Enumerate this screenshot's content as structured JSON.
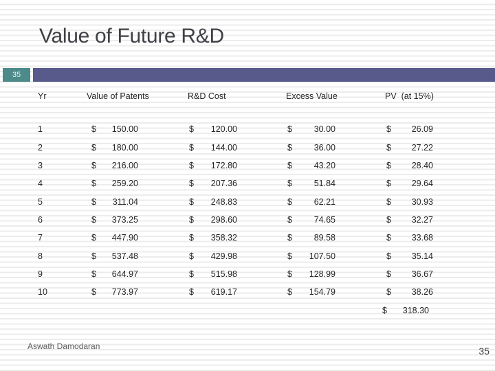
{
  "title": "Value of Future R&D",
  "badge_number": "35",
  "colors": {
    "accent_teal": "#4d8a8a",
    "accent_purple": "#575a8a",
    "stripe_gray": "#ececec",
    "title_text": "#3f4146",
    "body_text": "#262626",
    "footer_text": "#595959"
  },
  "table": {
    "currency_symbol": "$",
    "columns": [
      "Yr",
      "Value of Patents",
      "R&D Cost",
      "Excess Value",
      "PV  (at 15%)"
    ],
    "rows": [
      {
        "yr": "1",
        "value_of_patents": "150.00",
        "rd_cost": "120.00",
        "excess_value": "30.00",
        "pv": "26.09"
      },
      {
        "yr": "2",
        "value_of_patents": "180.00",
        "rd_cost": "144.00",
        "excess_value": "36.00",
        "pv": "27.22"
      },
      {
        "yr": "3",
        "value_of_patents": "216.00",
        "rd_cost": "172.80",
        "excess_value": "43.20",
        "pv": "28.40"
      },
      {
        "yr": "4",
        "value_of_patents": "259.20",
        "rd_cost": "207.36",
        "excess_value": "51.84",
        "pv": "29.64"
      },
      {
        "yr": "5",
        "value_of_patents": "311.04",
        "rd_cost": "248.83",
        "excess_value": "62.21",
        "pv": "30.93"
      },
      {
        "yr": "6",
        "value_of_patents": "373.25",
        "rd_cost": "298.60",
        "excess_value": "74.65",
        "pv": "32.27"
      },
      {
        "yr": "7",
        "value_of_patents": "447.90",
        "rd_cost": "358.32",
        "excess_value": "89.58",
        "pv": "33.68"
      },
      {
        "yr": "8",
        "value_of_patents": "537.48",
        "rd_cost": "429.98",
        "excess_value": "107.50",
        "pv": "35.14"
      },
      {
        "yr": "9",
        "value_of_patents": "644.97",
        "rd_cost": "515.98",
        "excess_value": "128.99",
        "pv": "36.67"
      },
      {
        "yr": "10",
        "value_of_patents": "773.97",
        "rd_cost": "619.17",
        "excess_value": "154.79",
        "pv": "38.26"
      }
    ],
    "total_pv": "318.30"
  },
  "footer": {
    "author": "Aswath Damodaran",
    "page_number": "35"
  }
}
